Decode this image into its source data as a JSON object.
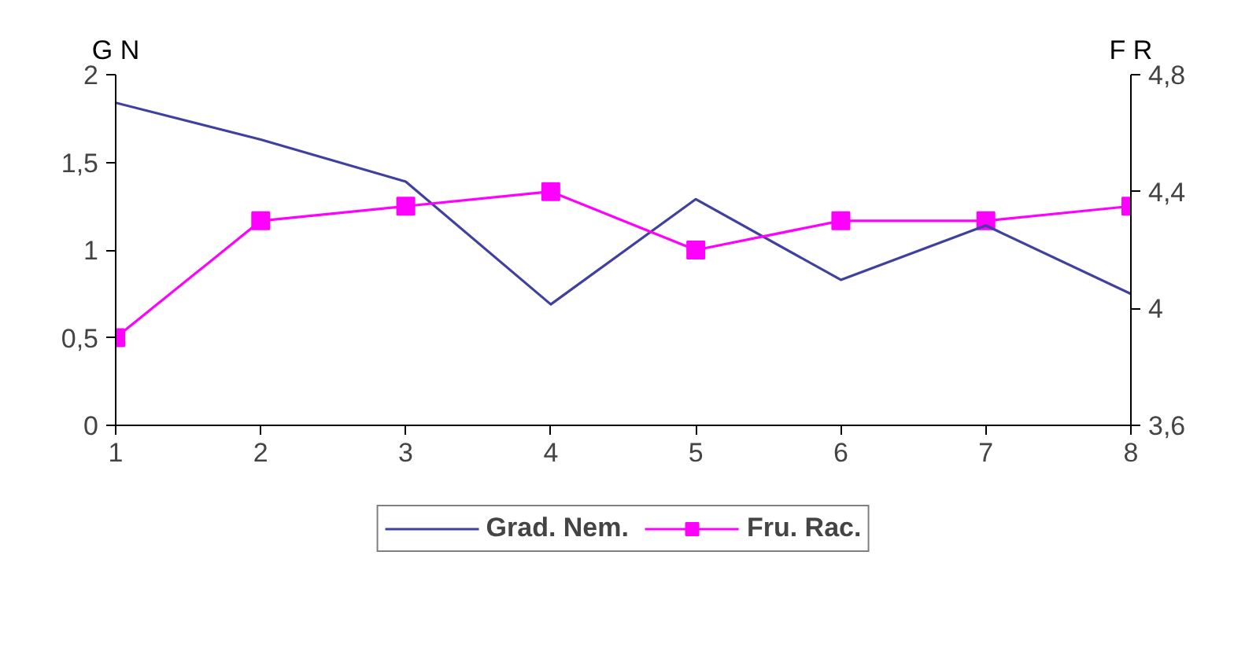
{
  "chart_data": {
    "type": "line",
    "x": [
      1,
      2,
      3,
      4,
      5,
      6,
      7,
      8
    ],
    "series": [
      {
        "name": "Grad. Nem.",
        "color": "#4040a0",
        "values": [
          1.84,
          1.63,
          1.39,
          0.69,
          1.29,
          0.83,
          1.14,
          0.75
        ],
        "marker": "none"
      },
      {
        "name": "Fru. Rac.",
        "color": "#ff00ff",
        "values": [
          3.9,
          4.3,
          4.35,
          4.4,
          4.2,
          4.3,
          4.3,
          4.35
        ],
        "axis": "y2",
        "marker": "square"
      }
    ],
    "xlim": [
      1,
      8
    ],
    "xticks": [
      1,
      2,
      3,
      4,
      5,
      6,
      7,
      8
    ],
    "ylim": [
      0,
      2
    ],
    "yticks": [
      0,
      {
        "value": 0.5,
        "label": "0,5"
      },
      1,
      {
        "value": 1.5,
        "label": "1,5"
      },
      2
    ],
    "y2lim": [
      3.6,
      4.8
    ],
    "y2ticks": [
      {
        "value": 3.6,
        "label": "3,6"
      },
      4,
      {
        "value": 4.4,
        "label": "4,4"
      },
      {
        "value": 4.8,
        "label": "4,8"
      }
    ],
    "ylabel": "G N",
    "y2label": "F R",
    "grid": false,
    "legend": "bottom"
  }
}
